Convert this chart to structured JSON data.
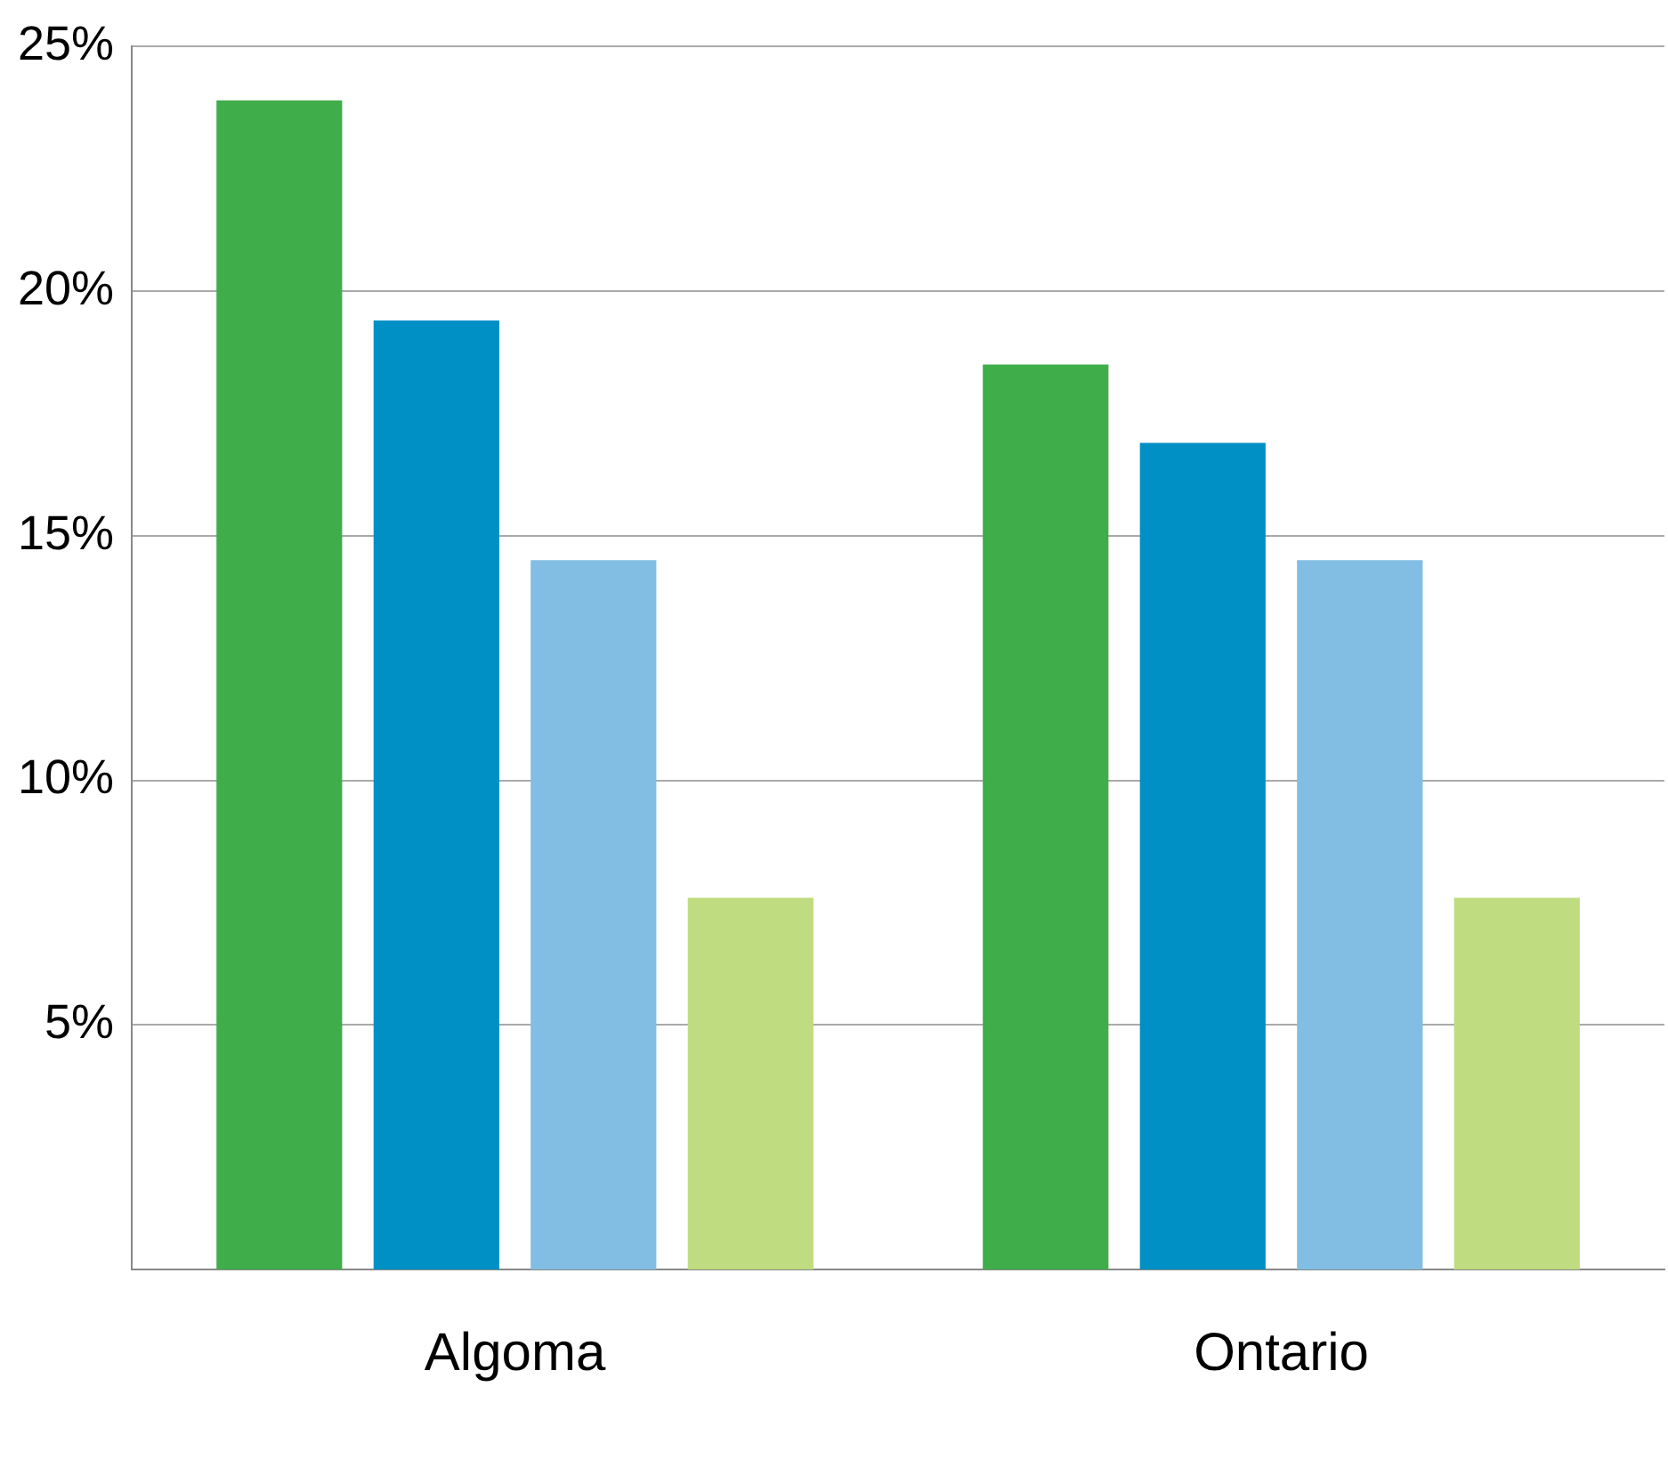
{
  "chart_data": {
    "type": "bar",
    "categories": [
      "Algoma",
      "Ontario"
    ],
    "series": [
      {
        "color": "#3fad49",
        "values": [
          23.9,
          18.5
        ]
      },
      {
        "color": "#0090c5",
        "values": [
          19.4,
          16.9
        ]
      },
      {
        "color": "#82bde3",
        "values": [
          14.5,
          14.5
        ]
      },
      {
        "color": "#c0dc80",
        "values": [
          7.6,
          7.6
        ]
      }
    ],
    "ylim": [
      0,
      25
    ],
    "yticks": [
      {
        "value": 5,
        "label": "5%"
      },
      {
        "value": 10,
        "label": "10%"
      },
      {
        "value": 15,
        "label": "15%"
      },
      {
        "value": 20,
        "label": "20%"
      },
      {
        "value": 25,
        "label": "25%"
      }
    ],
    "grid": "y",
    "legend": false
  }
}
